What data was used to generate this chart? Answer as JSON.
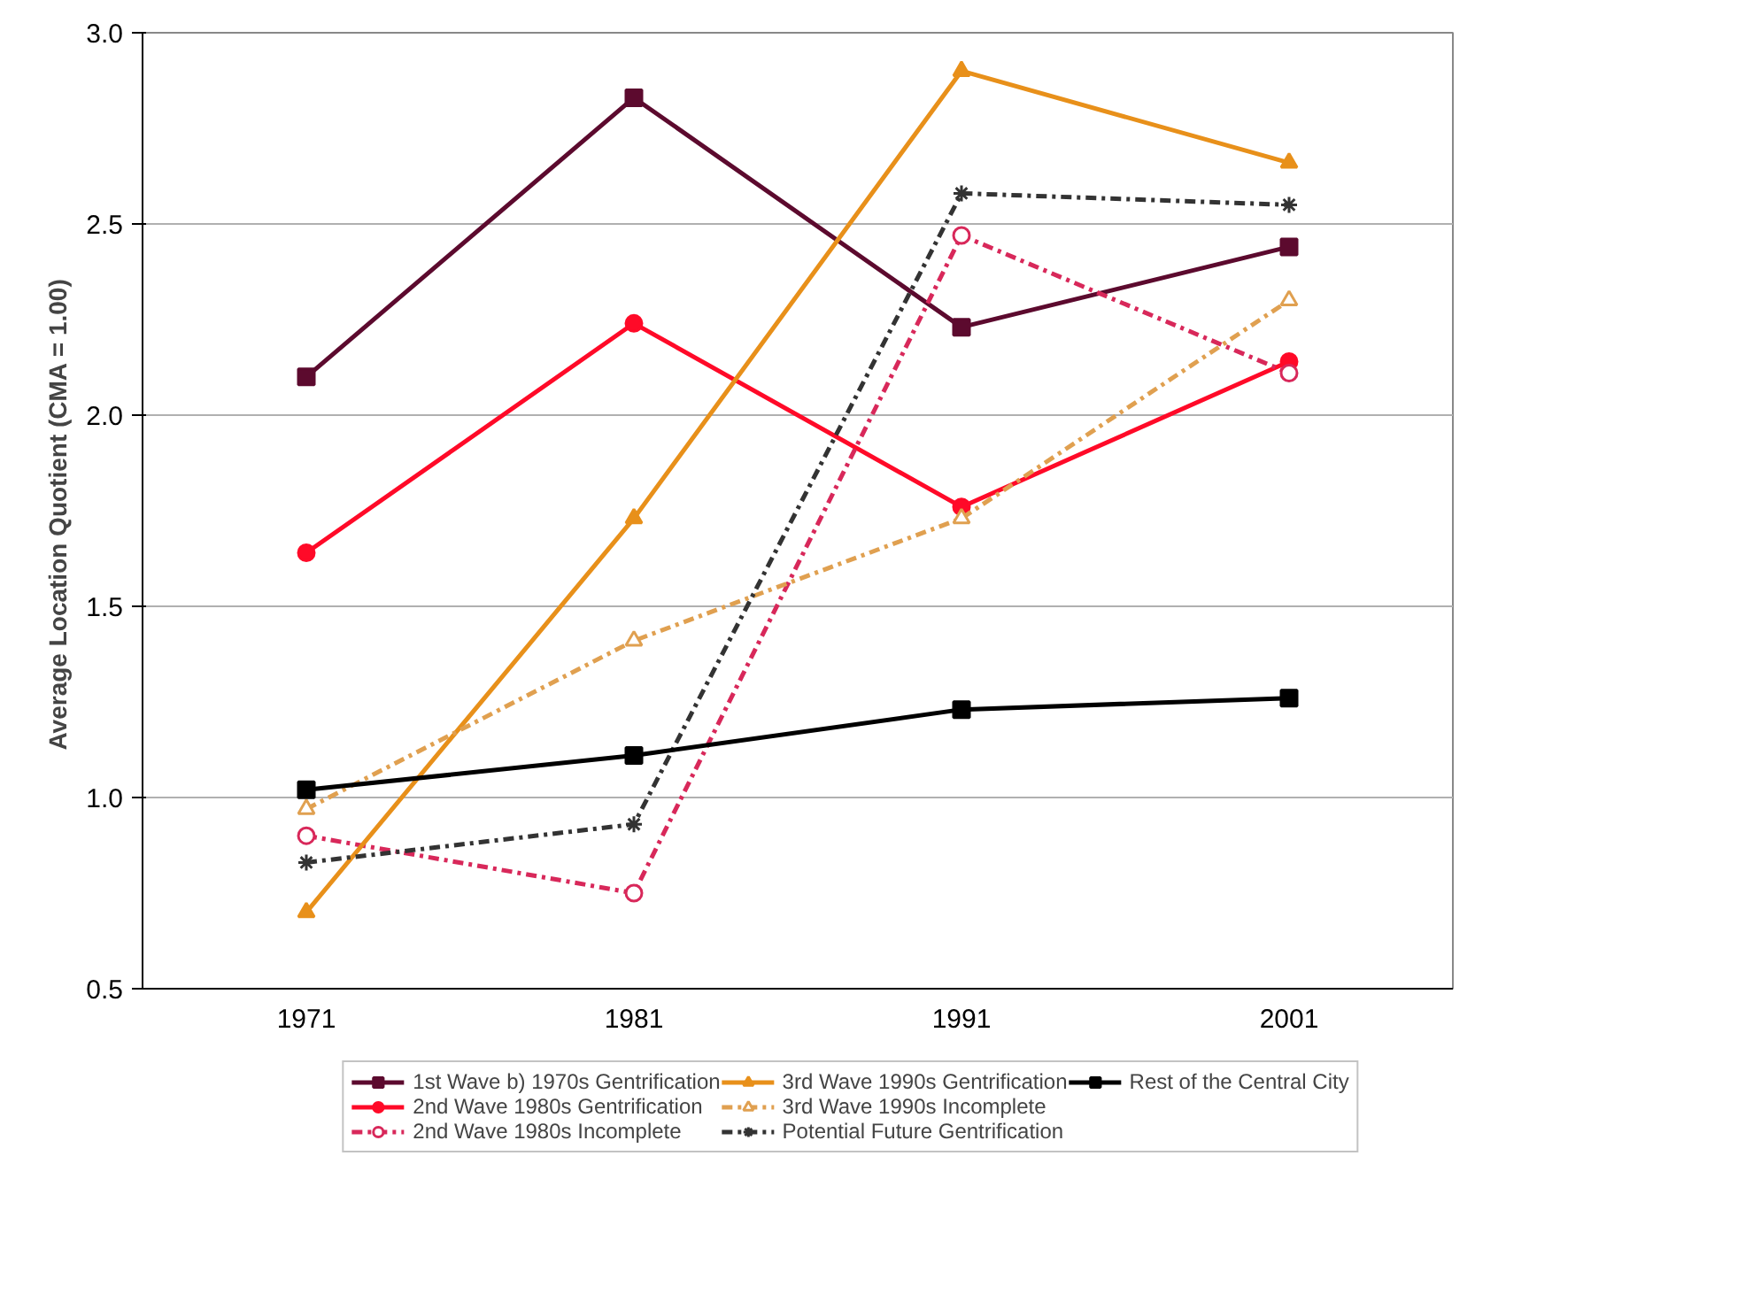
{
  "chart_data": {
    "type": "line",
    "ylabel": "Average Location Quotient  (CMA = 1.00)",
    "categories": [
      "1971",
      "1981",
      "1991",
      "2001"
    ],
    "ylim": [
      0.5,
      3.0
    ],
    "yticks": [
      {
        "value": 0.5,
        "label": "0.5"
      },
      {
        "value": 1.0,
        "label": "1.0"
      },
      {
        "value": 1.5,
        "label": "1.5"
      },
      {
        "value": 2.0,
        "label": "2.0"
      },
      {
        "value": 2.5,
        "label": "2.5"
      },
      {
        "value": 3.0,
        "label": "3.0"
      }
    ],
    "grid": "y",
    "legend": "bottom",
    "series": [
      {
        "name": "1st Wave b) 1970s Gentrification",
        "color": "#5c0a2e",
        "marker": "square",
        "line_style": "solid",
        "values": [
          2.1,
          2.83,
          2.23,
          2.44
        ]
      },
      {
        "name": "2nd Wave 1980s Gentrification",
        "color": "#ff0a28",
        "marker": "circle",
        "line_style": "solid",
        "values": [
          1.64,
          2.24,
          1.76,
          2.14
        ]
      },
      {
        "name": "2nd Wave 1980s Incomplete",
        "color": "#d8285a",
        "marker": "circle",
        "line_style": "dashed",
        "values": [
          0.9,
          0.75,
          2.47,
          2.11
        ]
      },
      {
        "name": "3rd Wave 1990s Gentrification",
        "color": "#e8901a",
        "marker": "triangle",
        "line_style": "solid",
        "values": [
          0.7,
          1.73,
          2.9,
          2.66
        ]
      },
      {
        "name": "3rd Wave 1990s Incomplete",
        "color": "#e0a050",
        "marker": "triangle",
        "line_style": "dashed",
        "values": [
          0.97,
          1.41,
          1.73,
          2.3
        ]
      },
      {
        "name": "Potential Future Gentrification",
        "color": "#333333",
        "marker": "cross",
        "line_style": "dashed",
        "values": [
          0.83,
          0.93,
          2.58,
          2.55
        ]
      },
      {
        "name": "Rest of the Central City",
        "color": "#000000",
        "marker": "square",
        "line_style": "solid",
        "values": [
          1.02,
          1.11,
          1.23,
          1.26
        ]
      }
    ]
  }
}
